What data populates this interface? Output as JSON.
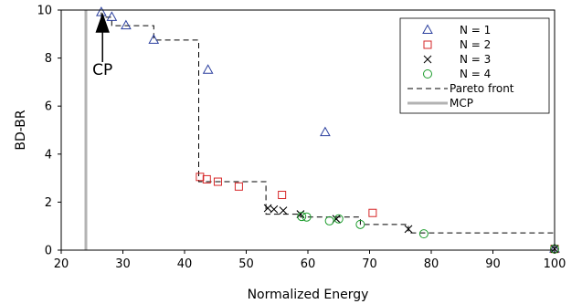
{
  "chart_data": {
    "type": "scatter",
    "xlabel": "Normalized Energy",
    "ylabel": "BD-BR",
    "xlim": [
      20,
      100
    ],
    "ylim": [
      0,
      10
    ],
    "xticks": [
      "20",
      "30",
      "40",
      "50",
      "60",
      "70",
      "80",
      "90",
      "100"
    ],
    "yticks": [
      "0",
      "2",
      "4",
      "6",
      "8",
      "10"
    ],
    "grid": false,
    "legend_position": "top-right",
    "series": [
      {
        "name": "N = 1",
        "marker": "triangle",
        "color": "#2b3f9e",
        "points": [
          [
            26.5,
            9.9
          ],
          [
            28.2,
            9.7
          ],
          [
            30.5,
            9.35
          ],
          [
            35.0,
            8.75
          ],
          [
            43.8,
            7.5
          ],
          [
            62.8,
            4.9
          ],
          [
            100.0,
            0.05
          ]
        ]
      },
      {
        "name": "N = 2",
        "marker": "square",
        "color": "#d62728",
        "points": [
          [
            42.5,
            3.05
          ],
          [
            43.6,
            2.95
          ],
          [
            45.4,
            2.85
          ],
          [
            48.8,
            2.65
          ],
          [
            55.8,
            2.3
          ],
          [
            70.5,
            1.55
          ],
          [
            100.0,
            0.05
          ]
        ]
      },
      {
        "name": "N = 3",
        "marker": "x",
        "color": "#000000",
        "points": [
          [
            53.5,
            1.75
          ],
          [
            54.5,
            1.7
          ],
          [
            56.0,
            1.65
          ],
          [
            58.8,
            1.5
          ],
          [
            64.6,
            1.3
          ],
          [
            76.3,
            0.88
          ],
          [
            100.0,
            0.05
          ]
        ]
      },
      {
        "name": "N = 4",
        "marker": "circle",
        "color": "#1a9b2a",
        "points": [
          [
            59.0,
            1.4
          ],
          [
            59.8,
            1.38
          ],
          [
            63.5,
            1.22
          ],
          [
            65.0,
            1.3
          ],
          [
            68.5,
            1.07
          ],
          [
            78.8,
            0.68
          ],
          [
            100.0,
            0.05
          ]
        ]
      }
    ],
    "pareto_front": {
      "name": "Pareto front",
      "color": "#000000",
      "points": [
        [
          26.5,
          9.9
        ],
        [
          26.5,
          9.7
        ],
        [
          28.2,
          9.7
        ],
        [
          28.2,
          9.35
        ],
        [
          35.0,
          9.35
        ],
        [
          35.0,
          8.75
        ],
        [
          42.3,
          8.75
        ],
        [
          42.3,
          2.85
        ],
        [
          53.2,
          2.85
        ],
        [
          53.2,
          1.5
        ],
        [
          58.8,
          1.5
        ],
        [
          58.8,
          1.38
        ],
        [
          68.5,
          1.38
        ],
        [
          68.5,
          1.07
        ],
        [
          76.3,
          1.07
        ],
        [
          76.3,
          0.72
        ],
        [
          100.0,
          0.72
        ],
        [
          100.0,
          0.05
        ]
      ]
    },
    "mcp": {
      "name": "MCP",
      "color": "#b3b3b3",
      "x": 24.0
    },
    "annotation": {
      "label": "CP",
      "x": 26.7,
      "y": 9.8
    }
  }
}
